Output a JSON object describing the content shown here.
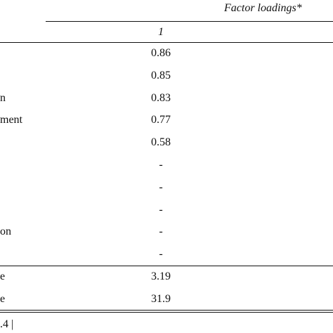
{
  "table": {
    "header": {
      "group": "Factor loadings*",
      "sub": "1"
    },
    "rows": [
      {
        "value": "0.86"
      },
      {
        "value": "0.85"
      },
      {
        "label": "n",
        "value": "0.83"
      },
      {
        "label": "ment",
        "value": "0.77"
      },
      {
        "value": "0.58"
      },
      {
        "value": "-"
      },
      {
        "value": "-"
      },
      {
        "value": "-"
      },
      {
        "label": "on",
        "value": "-"
      },
      {
        "value": "-"
      }
    ],
    "summary": [
      {
        "label": "e",
        "value": "3.19"
      },
      {
        "label": "e",
        "value": "31.9"
      }
    ],
    "footer": ".4 |"
  }
}
